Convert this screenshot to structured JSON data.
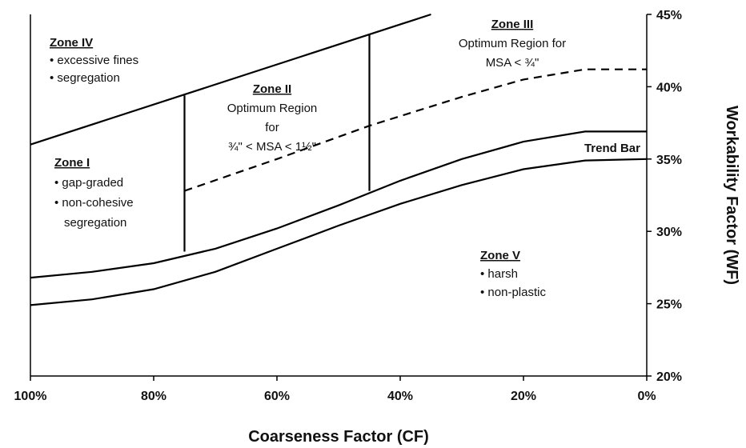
{
  "chart_data": {
    "type": "line",
    "xlabel": "Coarseness Factor (CF)",
    "ylabel": "Workability Factor (WF)",
    "xlim": [
      100,
      0
    ],
    "xticks": [
      {
        "value": 100,
        "label": "100%"
      },
      {
        "value": 80,
        "label": "80%"
      },
      {
        "value": 60,
        "label": "60%"
      },
      {
        "value": 40,
        "label": "40%"
      },
      {
        "value": 20,
        "label": "20%"
      },
      {
        "value": 0,
        "label": "0%"
      }
    ],
    "ylim": [
      20,
      45
    ],
    "yticks": [
      {
        "value": 20,
        "label": "20%"
      },
      {
        "value": 25,
        "label": "25%"
      },
      {
        "value": 30,
        "label": "30%"
      },
      {
        "value": 35,
        "label": "35%"
      },
      {
        "value": 40,
        "label": "40%"
      },
      {
        "value": 45,
        "label": "45%"
      }
    ],
    "series": [
      {
        "color": "#000000",
        "x": [
          100,
          35
        ],
        "values": [
          36,
          45
        ]
      },
      {
        "color": "#000000",
        "x": [
          100,
          90,
          80,
          70,
          60,
          50,
          40,
          30,
          20,
          10,
          0
        ],
        "values": [
          26.8,
          27.2,
          27.8,
          28.8,
          30.2,
          31.8,
          33.5,
          35,
          36.2,
          36.9,
          36.9
        ]
      },
      {
        "color": "#000000",
        "x": [
          100,
          90,
          80,
          70,
          60,
          50,
          40,
          30,
          20,
          10,
          0
        ],
        "values": [
          24.9,
          25.3,
          26,
          27.2,
          28.8,
          30.4,
          31.9,
          33.2,
          34.3,
          34.9,
          35
        ]
      },
      {
        "color": "#000000",
        "dashed": true,
        "x": [
          75,
          60,
          45,
          30,
          20,
          10,
          0
        ],
        "values": [
          32.8,
          35,
          37.3,
          39.3,
          40.5,
          41.2,
          41.2
        ]
      },
      {
        "color": "#000000",
        "x": [
          75,
          75
        ],
        "values": [
          28.6,
          39.4
        ]
      },
      {
        "color": "#000000",
        "x": [
          45,
          45
        ],
        "values": [
          32.8,
          43.6
        ]
      }
    ],
    "zones": [
      {
        "title": "Zone IV",
        "lines": [
          "• excessive fines",
          "• segregation"
        ]
      },
      {
        "title": "Zone II",
        "lines": [
          "Optimum Region",
          "for",
          "¾\" < MSA < 1½\""
        ]
      },
      {
        "title": "Zone III",
        "lines": [
          "Optimum Region for",
          "MSA < ¾\""
        ]
      },
      {
        "title": "Zone I",
        "lines": [
          "• gap-graded",
          "• non-cohesive",
          "segregation"
        ]
      },
      {
        "title": "Zone V",
        "lines": [
          "• harsh",
          "• non-plastic"
        ]
      }
    ],
    "trend_label": "Trend Bar"
  }
}
